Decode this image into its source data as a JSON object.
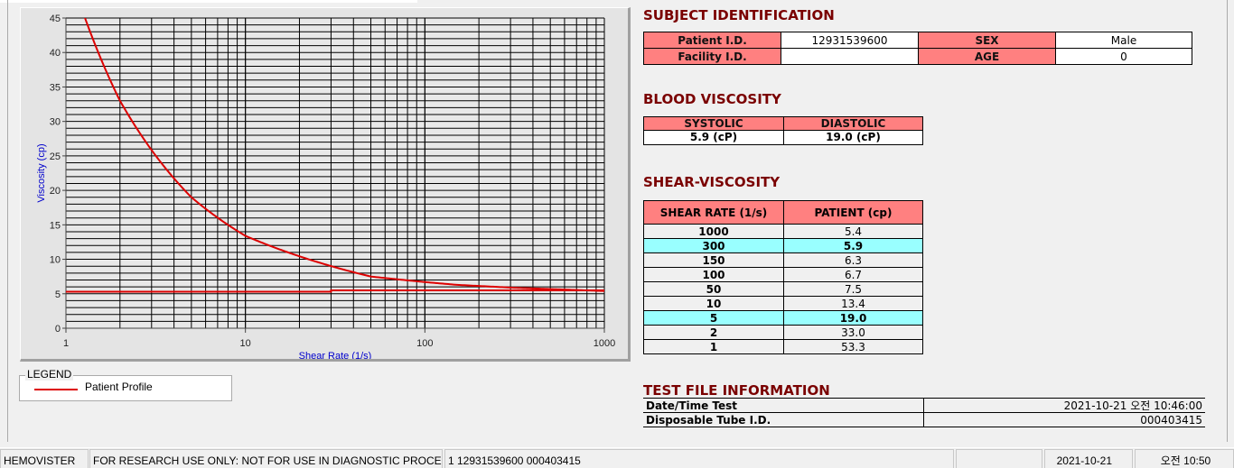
{
  "chart_data": {
    "type": "line",
    "xlabel": "Shear Rate (1/s)",
    "ylabel": "Viscosity (cp)",
    "xscale": "log",
    "xlim": [
      1,
      1000
    ],
    "ylim": [
      0,
      45
    ],
    "xticks": [
      "1",
      "10",
      "100",
      "1000"
    ],
    "yticks": [
      "0",
      "5",
      "10",
      "15",
      "20",
      "25",
      "30",
      "35",
      "40",
      "45"
    ],
    "grid": true,
    "legend_placement": "below-left",
    "colors": {
      "line": "#dd0000",
      "axis_label": "#0000cc",
      "plot_bg": "#e8e8e8"
    },
    "series": [
      {
        "name": "Patient Profile",
        "x": [
          1,
          2,
          5,
          10,
          50,
          100,
          150,
          300,
          1000
        ],
        "y": [
          53.3,
          33.0,
          19.0,
          13.4,
          7.5,
          6.7,
          6.3,
          5.9,
          5.4
        ]
      },
      {
        "x": [
          1,
          30,
          30,
          1000
        ],
        "y": [
          5.3,
          5.3,
          5.5,
          5.5
        ]
      }
    ]
  },
  "legend": {
    "title": "LEGEND",
    "items": [
      {
        "label": "Patient Profile",
        "color": "#dd0000"
      }
    ]
  },
  "subject": {
    "title": "SUBJECT IDENTIFICATION",
    "patient_id_label": "Patient I.D.",
    "patient_id": "12931539600",
    "sex_label": "SEX",
    "sex": "Male",
    "facility_label": "Facility I.D.",
    "facility": "",
    "age_label": "AGE",
    "age": "0"
  },
  "blood": {
    "title": "BLOOD VISCOSITY",
    "systolic_label": "SYSTOLIC",
    "diastolic_label": "DIASTOLIC",
    "systolic": "5.9 (cP)",
    "diastolic": "19.0 (cP)"
  },
  "shear": {
    "title": "SHEAR-VISCOSITY",
    "col1": "SHEAR RATE (1/s)",
    "col2": "PATIENT (cp)",
    "rows": [
      {
        "rate": "1000",
        "value": "5.4",
        "hl": false
      },
      {
        "rate": "300",
        "value": "5.9",
        "hl": true
      },
      {
        "rate": "150",
        "value": "6.3",
        "hl": false
      },
      {
        "rate": "100",
        "value": "6.7",
        "hl": false
      },
      {
        "rate": "50",
        "value": "7.5",
        "hl": false
      },
      {
        "rate": "10",
        "value": "13.4",
        "hl": false
      },
      {
        "rate": "5",
        "value": "19.0",
        "hl": true
      },
      {
        "rate": "2",
        "value": "33.0",
        "hl": false
      },
      {
        "rate": "1",
        "value": "53.3",
        "hl": false
      }
    ],
    "highlight_color": "#99ffff",
    "header_color": "#ff8080"
  },
  "testfile": {
    "title": "TEST FILE INFORMATION",
    "date_label": "Date/Time Test",
    "date": "2021-10-21   오전 10:46:00",
    "tube_label": "Disposable Tube I.D.",
    "tube": "000403415"
  },
  "status": {
    "app": "HEMOVISTER",
    "notice": "FOR RESEARCH USE ONLY: NOT FOR USE IN DIAGNOSTIC PROCEDURES",
    "record": "1  12931539600  000403415",
    "empty": "",
    "date": "2021-10-21",
    "time": "오전 10:50"
  }
}
